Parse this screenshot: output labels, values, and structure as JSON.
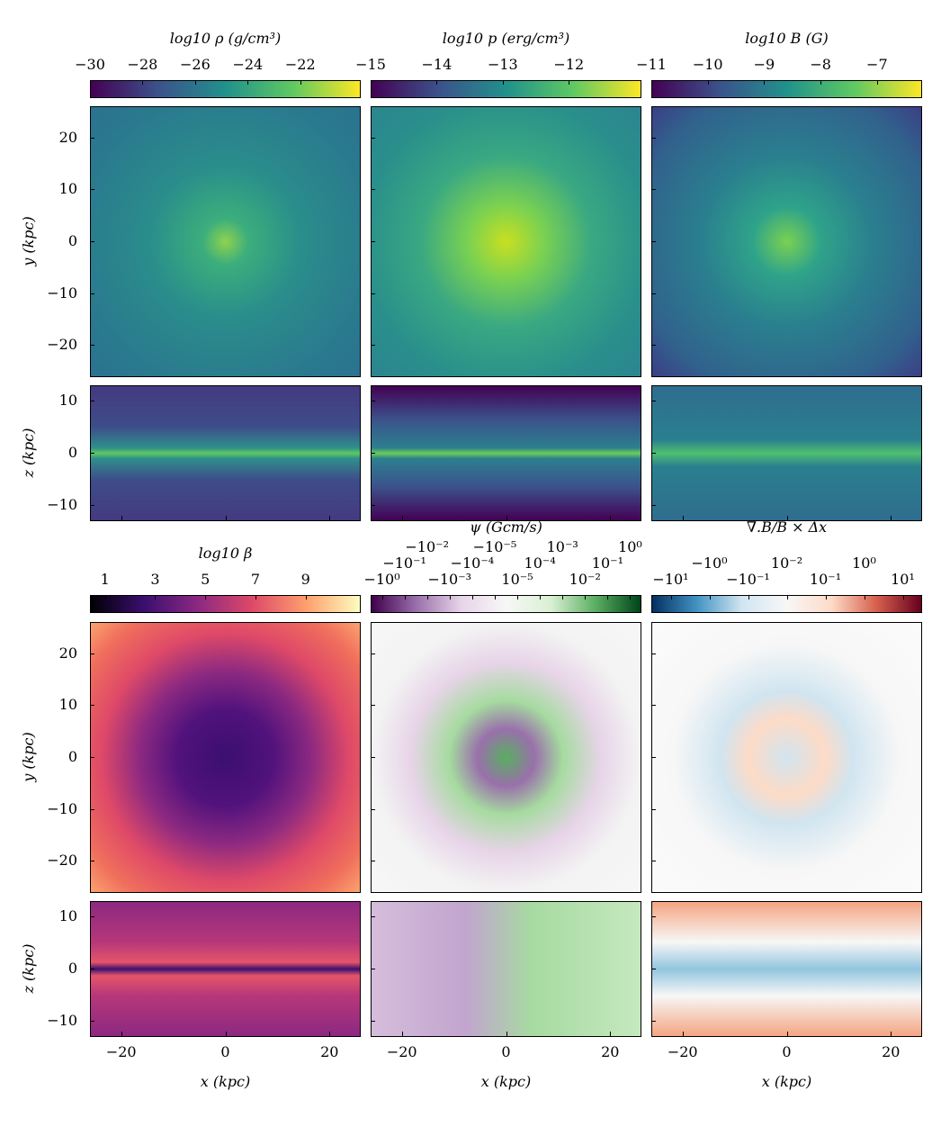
{
  "chart_data": {
    "type": "heatmap",
    "layout": "2 groups x 3 columns; each group has a face-on (x-y) map and an edge-on (x-z) map per quantity",
    "colorbars": [
      {
        "title": "log10 ρ (g/cm³)",
        "ticks": [
          "−30",
          "−28",
          "−26",
          "−24",
          "−22"
        ],
        "tick_values": [
          -30,
          -28,
          -26,
          -24,
          -22
        ],
        "range": [
          -30,
          -19.7
        ],
        "colormap": "viridis"
      },
      {
        "title": "log10 p (erg/cm³)",
        "ticks": [
          "−15",
          "−14",
          "−13",
          "−12"
        ],
        "tick_values": [
          -15,
          -14,
          -13,
          -12
        ],
        "range": [
          -15,
          -10.9
        ],
        "colormap": "viridis"
      },
      {
        "title": "log10 B (G)",
        "ticks": [
          "−11",
          "−10",
          "−9",
          "−8",
          "−7"
        ],
        "tick_values": [
          -11,
          -10,
          -9,
          -8,
          -7
        ],
        "range": [
          -11,
          -6.2
        ],
        "colormap": "viridis"
      },
      {
        "title": "log10 β",
        "ticks": [
          "1",
          "3",
          "5",
          "7",
          "9"
        ],
        "tick_values": [
          1,
          3,
          5,
          7,
          9
        ],
        "range": [
          0.4,
          11.2
        ],
        "colormap": "magma"
      },
      {
        "title": "ψ (Gcm/s)",
        "ticks": [
          "−10⁰",
          "−10⁻¹",
          "−10⁻²",
          "−10⁻³",
          "−10⁻⁴",
          "−10⁻⁵",
          "10⁻⁵",
          "10⁻⁴",
          "10⁻³",
          "10⁻²",
          "10⁻¹",
          "10⁰"
        ],
        "scale": "symlog",
        "colormap": "PRGn"
      },
      {
        "title": "∇.B/B × Δx",
        "ticks": [
          "−10¹",
          "−10⁰",
          "−10⁻¹",
          "10⁻²",
          "10⁻¹",
          "10⁰",
          "10¹"
        ],
        "scale": "symlog",
        "colormap": "RdBu_r"
      }
    ],
    "xy_panel": {
      "ylabel": "y (kpc)",
      "yticks": [
        20,
        10,
        0,
        -10,
        -20
      ],
      "ylim": [
        -26,
        26
      ],
      "xlim": [
        -26,
        26
      ]
    },
    "xz_panel": {
      "ylabel": "z (kpc)",
      "yticks": [
        10,
        0,
        -10
      ],
      "ylim": [
        -13,
        13
      ],
      "xlabel": "x (kpc)",
      "xticks": [
        -20,
        0,
        20
      ],
      "xlim": [
        -26,
        26
      ]
    }
  },
  "colors": {
    "density": "#2a7b8e",
    "pressure": "#2e9a88",
    "bfield": "#2b6f8c",
    "beta": "#e8705f",
    "psi": "#f3f3f3",
    "divb": "#f7f7f7"
  }
}
